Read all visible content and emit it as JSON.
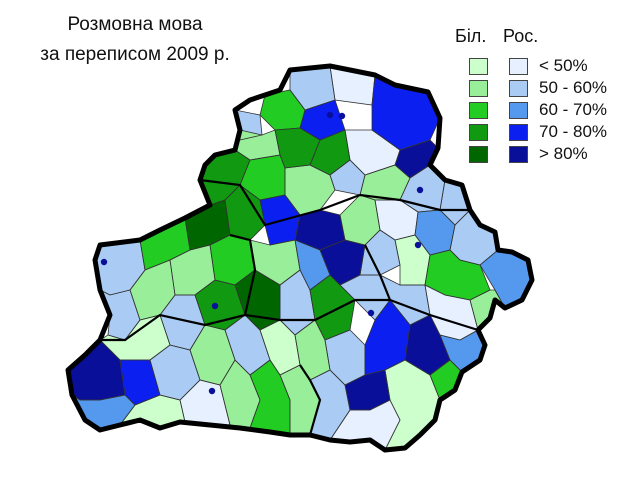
{
  "title": {
    "line1": "Розмовна мова",
    "line2": "за переписом 2009 р."
  },
  "legend": {
    "belarusian_header": "Біл.",
    "russian_header": "Рос.",
    "classes": [
      {
        "label": "< 50%",
        "bel_color": "#ccffcc",
        "rus_color": "#e6f0ff"
      },
      {
        "label": "50 - 60%",
        "bel_color": "#99ee99",
        "rus_color": "#aaccf4"
      },
      {
        "label": "60 - 70%",
        "bel_color": "#22cc22",
        "rus_color": "#5599ee"
      },
      {
        "label": "70 - 80%",
        "bel_color": "#119911",
        "rus_color": "#0a1ff0"
      },
      {
        "label": "> 80%",
        "bel_color": "#006600",
        "rus_color": "#0a0f99"
      }
    ]
  },
  "map": {
    "outline_color": "#000000",
    "city_marker_color": "#0a0f99"
  }
}
